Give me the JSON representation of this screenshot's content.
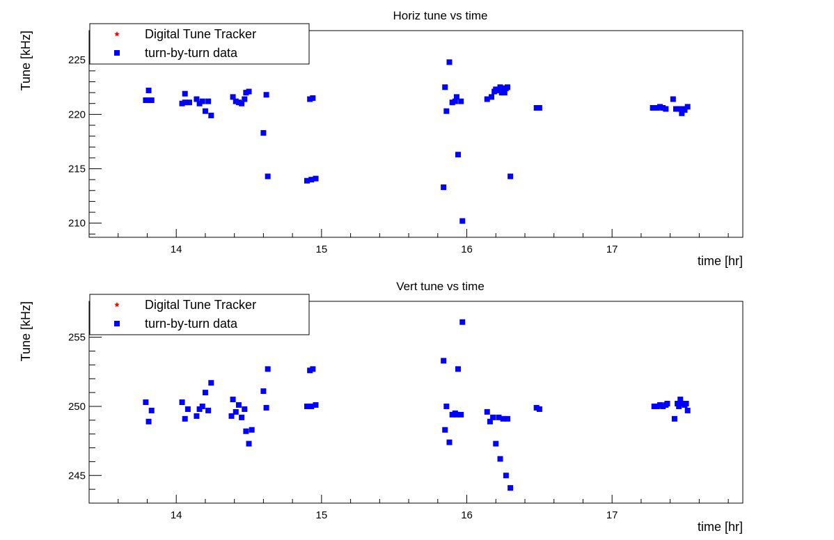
{
  "chart_data": [
    {
      "type": "scatter",
      "title": "Horiz tune vs time",
      "xlabel": "time [hr]",
      "ylabel": "Tune [kHz]",
      "xlim": [
        13.4,
        17.9
      ],
      "ylim": [
        208.7,
        227.7
      ],
      "xticks": [
        14,
        15,
        16,
        17
      ],
      "yticks": [
        210,
        215,
        220,
        225
      ],
      "grid": false,
      "legend_position": "top-left",
      "legend": [
        {
          "label": "Digital Tune Tracker",
          "marker": "star",
          "color": "#ff0000"
        },
        {
          "label": "turn-by-turn data",
          "marker": "square",
          "color": "#0000ff"
        }
      ],
      "series": [
        {
          "name": "turn-by-turn data",
          "color": "#0000ff",
          "marker": "square",
          "x": [
            13.79,
            13.81,
            13.81,
            13.83,
            14.04,
            14.06,
            14.06,
            14.09,
            14.14,
            14.16,
            14.18,
            14.2,
            14.22,
            14.24,
            14.39,
            14.41,
            14.43,
            14.45,
            14.47,
            14.48,
            14.5,
            14.6,
            14.62,
            14.63,
            14.9,
            14.92,
            14.93,
            14.94,
            14.96,
            15.84,
            15.85,
            15.86,
            15.88,
            15.9,
            15.92,
            15.93,
            15.94,
            15.96,
            15.97,
            16.14,
            16.17,
            16.19,
            16.2,
            16.22,
            16.23,
            16.24,
            16.25,
            16.26,
            16.27,
            16.28,
            16.3,
            16.48,
            16.5,
            17.28,
            17.31,
            17.33,
            17.35,
            17.37,
            17.42,
            17.44,
            17.46,
            17.48,
            17.49,
            17.5,
            17.52
          ],
          "y": [
            221.3,
            222.2,
            221.3,
            221.3,
            221.0,
            221.9,
            221.1,
            221.1,
            221.4,
            221.0,
            221.2,
            220.3,
            221.2,
            219.9,
            221.6,
            221.2,
            221.1,
            221.0,
            221.4,
            222.0,
            222.1,
            218.3,
            221.8,
            214.3,
            213.9,
            221.4,
            214.0,
            221.5,
            214.1,
            213.3,
            222.5,
            220.3,
            224.8,
            221.1,
            221.2,
            221.6,
            216.3,
            221.2,
            210.2,
            221.4,
            221.6,
            222.1,
            222.3,
            222.2,
            222.5,
            222.0,
            222.4,
            222.0,
            222.4,
            222.5,
            214.3,
            220.6,
            220.6,
            220.6,
            220.6,
            220.7,
            220.6,
            220.5,
            221.4,
            220.5,
            220.5,
            220.1,
            220.5,
            220.4,
            220.7
          ],
          "x_sorted_note": ""
        }
      ]
    },
    {
      "type": "scatter",
      "title": "Vert tune vs time",
      "xlabel": "time [hr]",
      "ylabel": "Tune [kHz]",
      "xlim": [
        13.4,
        17.9
      ],
      "ylim": [
        243.0,
        257.6
      ],
      "xticks": [
        14,
        15,
        16,
        17
      ],
      "yticks": [
        245,
        250,
        255
      ],
      "grid": false,
      "legend_position": "top-left",
      "legend": [
        {
          "label": "Digital Tune Tracker",
          "marker": "star",
          "color": "#ff0000"
        },
        {
          "label": "turn-by-turn data",
          "marker": "square",
          "color": "#0000ff"
        }
      ],
      "series": [
        {
          "name": "turn-by-turn data",
          "color": "#0000ff",
          "marker": "square",
          "x": [
            13.79,
            13.81,
            13.83,
            14.04,
            14.06,
            14.08,
            14.14,
            14.16,
            14.18,
            14.2,
            14.22,
            14.24,
            14.38,
            14.39,
            14.41,
            14.43,
            14.45,
            14.47,
            14.48,
            14.5,
            14.52,
            14.6,
            14.62,
            14.63,
            14.9,
            14.92,
            14.93,
            14.94,
            14.96,
            15.84,
            15.85,
            15.86,
            15.88,
            15.9,
            15.92,
            15.93,
            15.94,
            15.96,
            15.97,
            16.14,
            16.16,
            16.18,
            16.2,
            16.22,
            16.23,
            16.25,
            16.27,
            16.28,
            16.3,
            16.48,
            16.5,
            17.29,
            17.31,
            17.33,
            17.35,
            17.37,
            17.38,
            17.43,
            17.45,
            17.46,
            17.47,
            17.48,
            17.5,
            17.51,
            17.52
          ],
          "y": [
            250.3,
            248.9,
            249.7,
            250.3,
            249.1,
            249.8,
            249.3,
            249.8,
            250.0,
            251.0,
            249.7,
            251.7,
            249.3,
            250.5,
            249.6,
            250.1,
            249.2,
            249.8,
            248.2,
            247.3,
            248.3,
            251.1,
            249.9,
            252.7,
            250.0,
            252.6,
            250.0,
            252.7,
            250.1,
            253.3,
            248.3,
            250.0,
            247.4,
            249.4,
            249.5,
            249.4,
            252.7,
            249.4,
            256.1,
            249.6,
            248.9,
            249.2,
            247.3,
            249.2,
            246.2,
            249.1,
            245.0,
            249.1,
            244.1,
            249.9,
            249.8,
            250.0,
            250.0,
            250.1,
            250.0,
            250.1,
            250.2,
            249.1,
            250.2,
            250.0,
            250.5,
            250.2,
            250.1,
            250.2,
            249.7
          ]
        }
      ]
    }
  ]
}
